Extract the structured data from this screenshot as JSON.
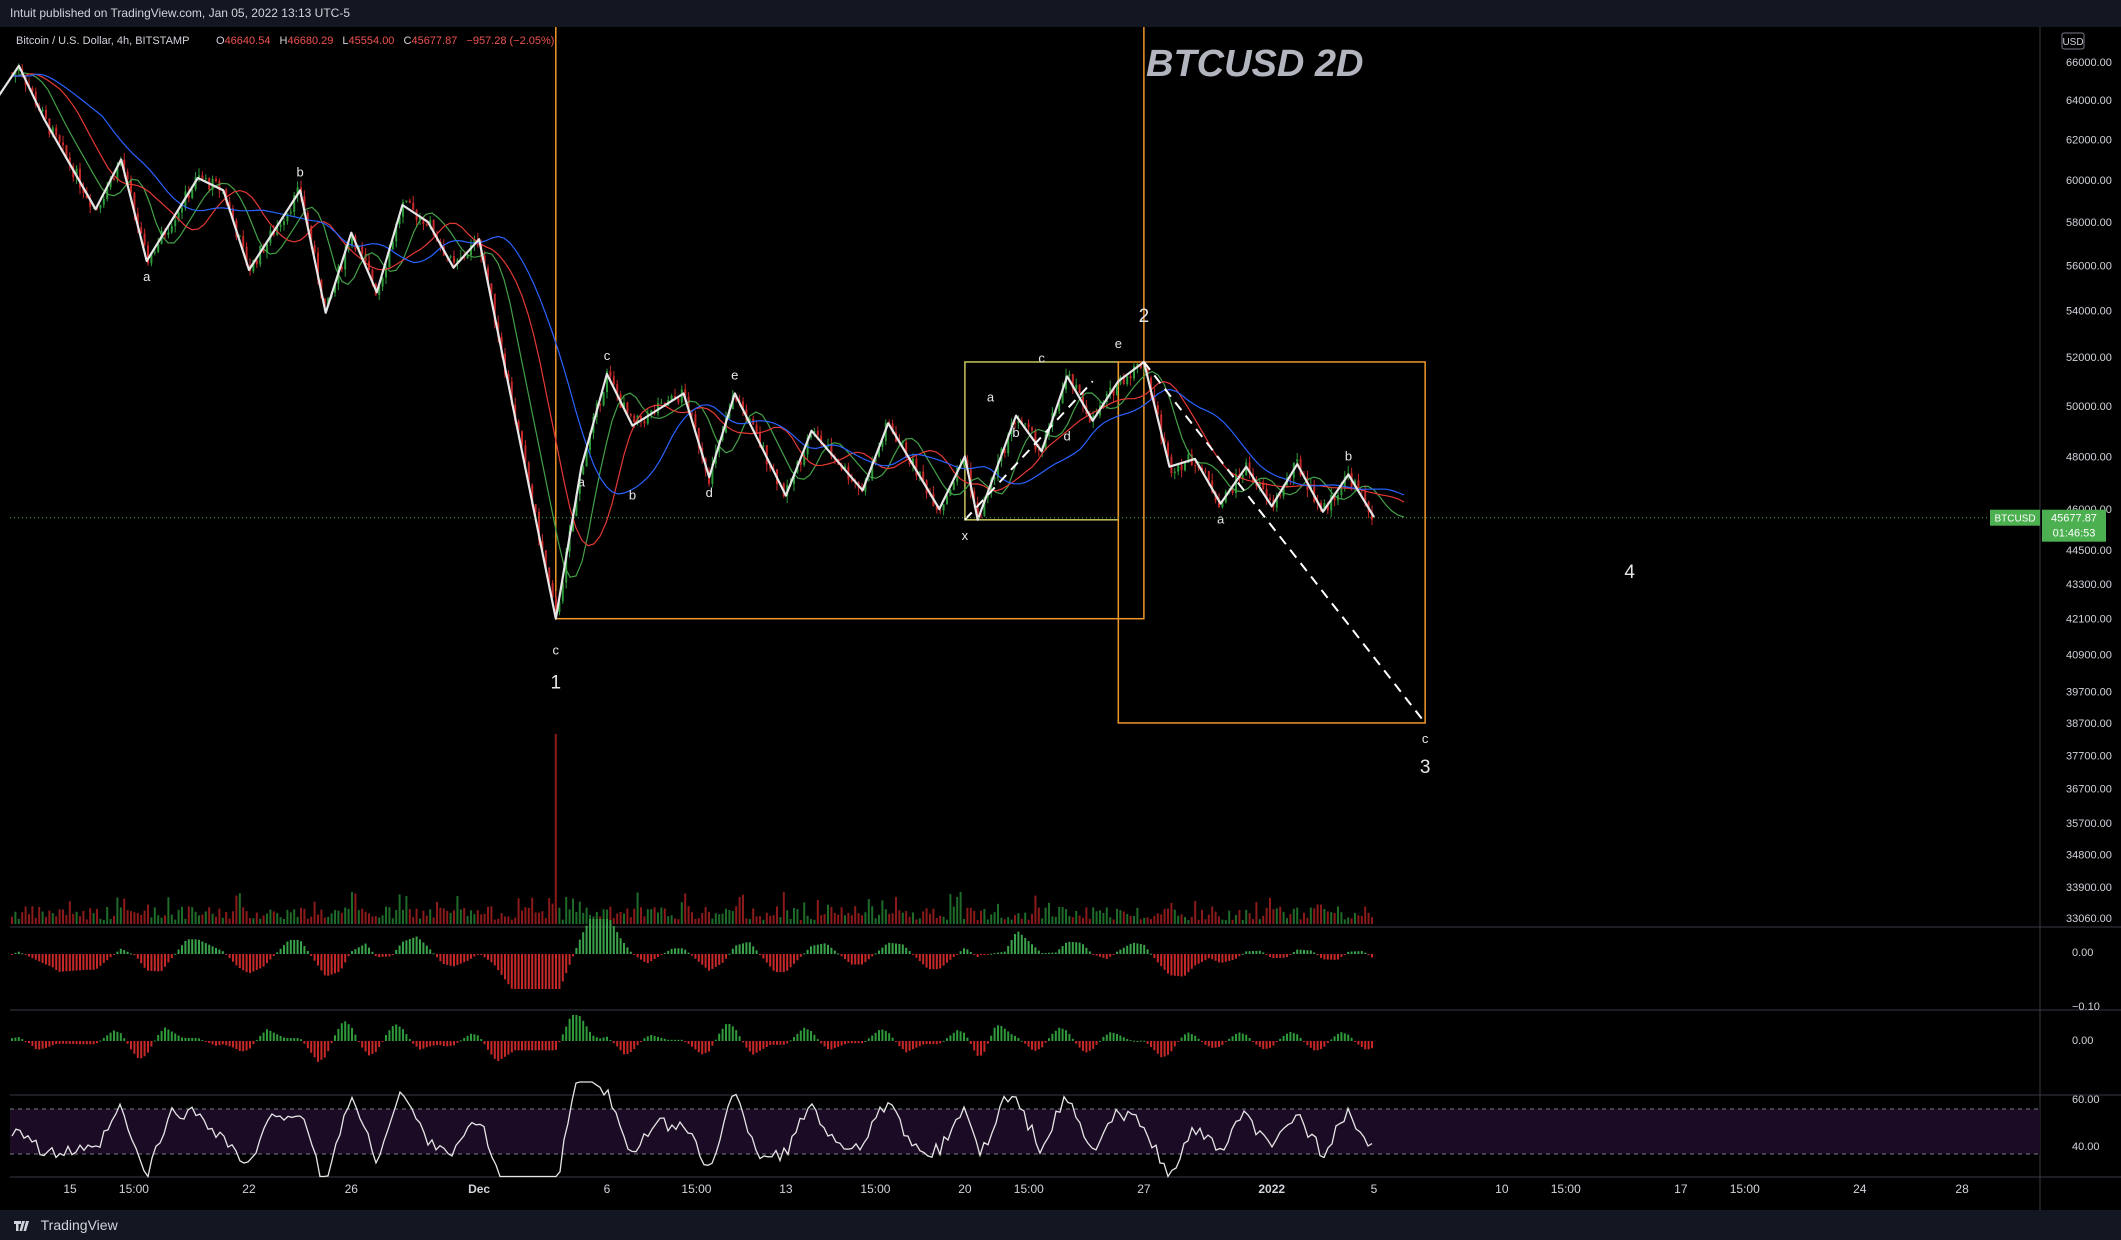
{
  "header": {
    "published_text": "Intuit published on TradingView.com, Jan 05, 2022 13:13 UTC-5"
  },
  "symbol_line": {
    "name": "Bitcoin / U.S. Dollar, 4h, BITSTAMP",
    "open_label": "O",
    "open": "46640.54",
    "high_label": "H",
    "high": "46680.29",
    "low_label": "L",
    "low": "45554.00",
    "close_label": "C",
    "close": "45677.87",
    "change": "−957.28 (−2.05%)"
  },
  "watermark_title": "BTCUSD 2D",
  "currency_badge": "USD",
  "price_tag": {
    "symbol": "BTCUSD",
    "price": "45677.87",
    "countdown": "01:46:53",
    "color": "#4caf50"
  },
  "footer": {
    "brand": "TradingView"
  },
  "colors": {
    "up": "#26a69a",
    "up_green": "#4caf50",
    "down": "#ef5350",
    "box_orange": "#f0962b",
    "box_yellow": "#c8c55a",
    "ma_blue": "#2962ff",
    "ma_red": "#e53935",
    "ma_green": "#43a047",
    "wave_line": "#e6e6e6",
    "rsi_band": "#1b0b24"
  },
  "chart_data": {
    "type": "candlestick",
    "title": "BTCUSD 2D",
    "symbol": "BTCUSD",
    "timeframe": "4h",
    "exchange": "BITSTAMP",
    "y_axis": {
      "tick_labels": [
        "66000.00",
        "64000.00",
        "62000.00",
        "60000.00",
        "58000.00",
        "56000.00",
        "54000.00",
        "52000.00",
        "50000.00",
        "48000.00",
        "46000.00",
        "44500.00",
        "43300.00",
        "42100.00",
        "40900.00",
        "39700.00",
        "38700.00",
        "37700.00",
        "36700.00",
        "35700.00",
        "34800.00",
        "33900.00",
        "33060.00"
      ],
      "scale": "log",
      "ylim": [
        33060,
        67000
      ],
      "grid": false
    },
    "x_axis": {
      "tick_labels": [
        "15",
        "15:00",
        "22",
        "26",
        "Dec",
        "6",
        "15:00",
        "13",
        "15:00",
        "20",
        "15:00",
        "27",
        "2022",
        "5",
        "10",
        "15:00",
        "17",
        "15:00",
        "24",
        "28"
      ],
      "bold_labels": [
        "Dec",
        "2022"
      ]
    },
    "wave_path": [
      {
        "d": "Nov 12",
        "p": 63800
      },
      {
        "d": "Nov 13",
        "p": 65800
      },
      {
        "d": "Nov 14",
        "p": 63000
      },
      {
        "d": "Nov 16",
        "p": 58600
      },
      {
        "d": "Nov 17",
        "p": 61000
      },
      {
        "d": "Nov 18",
        "p": 56200
      },
      {
        "d": "Nov 20",
        "p": 60100
      },
      {
        "d": "Nov 21",
        "p": 59500
      },
      {
        "d": "Nov 22",
        "p": 55800
      },
      {
        "d": "Nov 24",
        "p": 59500
      },
      {
        "d": "Nov 25",
        "p": 53900
      },
      {
        "d": "Nov 26",
        "p": 57500
      },
      {
        "d": "Nov 27",
        "p": 54800
      },
      {
        "d": "Nov 28",
        "p": 58800
      },
      {
        "d": "Nov 29",
        "p": 58000
      },
      {
        "d": "Nov 30",
        "p": 55900
      },
      {
        "d": "Dec 01",
        "p": 57200
      },
      {
        "d": "Dec 04",
        "p": 42100
      },
      {
        "d": "Dec 05",
        "p": 47600
      },
      {
        "d": "Dec 06",
        "p": 51300
      },
      {
        "d": "Dec 07",
        "p": 49200
      },
      {
        "d": "Dec 09",
        "p": 50500
      },
      {
        "d": "Dec 10",
        "p": 47200
      },
      {
        "d": "Dec 11",
        "p": 50500
      },
      {
        "d": "Dec 13",
        "p": 46500
      },
      {
        "d": "Dec 14",
        "p": 49000
      },
      {
        "d": "Dec 16",
        "p": 46700
      },
      {
        "d": "Dec 17",
        "p": 49300
      },
      {
        "d": "Dec 19",
        "p": 46000
      },
      {
        "d": "Dec 20",
        "p": 48000
      },
      {
        "d": "Dec 20b",
        "p": 45600
      },
      {
        "d": "Dec 22",
        "p": 49600
      },
      {
        "d": "Dec 23",
        "p": 48200
      },
      {
        "d": "Dec 24",
        "p": 51200
      },
      {
        "d": "Dec 25",
        "p": 49400
      },
      {
        "d": "Dec 26",
        "p": 51000
      },
      {
        "d": "Dec 27",
        "p": 51800
      },
      {
        "d": "Dec 28",
        "p": 47600
      },
      {
        "d": "Dec 29",
        "p": 47900
      },
      {
        "d": "Dec 30",
        "p": 46200
      },
      {
        "d": "Dec 31",
        "p": 47600
      },
      {
        "d": "Jan 01",
        "p": 46100
      },
      {
        "d": "Jan 02",
        "p": 47700
      },
      {
        "d": "Jan 03",
        "p": 45900
      },
      {
        "d": "Jan 04",
        "p": 47300
      },
      {
        "d": "Jan 05",
        "p": 45700
      }
    ],
    "wave_labels": [
      {
        "text": "b",
        "d": "Nov 24",
        "p": 59500,
        "size": "small"
      },
      {
        "text": "a",
        "d": "Nov 18",
        "p": 56200,
        "size": "small"
      },
      {
        "text": "a",
        "d": "Dec 05",
        "p": 47600,
        "size": "small"
      },
      {
        "text": "b",
        "d": "Dec 07",
        "p": 46800,
        "size": "small"
      },
      {
        "text": "c",
        "d": "Dec 06",
        "p": 51300,
        "size": "small"
      },
      {
        "text": "d",
        "d": "Dec 10",
        "p": 47200,
        "size": "small"
      },
      {
        "text": "e",
        "d": "Dec 11",
        "p": 50500,
        "size": "small"
      },
      {
        "text": "c",
        "d": "Dec 04",
        "p": 42100,
        "size": "small"
      },
      {
        "text": "1",
        "d": "Dec 04",
        "p": 42100,
        "size": "big"
      },
      {
        "text": "a",
        "d": "Dec 21",
        "p": 49600,
        "size": "small"
      },
      {
        "text": "b",
        "d": "Dec 22",
        "p": 48200,
        "size": "small"
      },
      {
        "text": "c",
        "d": "Dec 23",
        "p": 51200,
        "size": "small"
      },
      {
        "text": "d",
        "d": "Dec 24",
        "p": 49400,
        "size": "small"
      },
      {
        "text": "e",
        "d": "Dec 26",
        "p": 51800,
        "size": "small"
      },
      {
        "text": "x",
        "d": "Dec 20",
        "p": 45600,
        "size": "small"
      },
      {
        "text": "2",
        "d": "Dec 27",
        "p": 51800,
        "size": "big"
      },
      {
        "text": "a",
        "d": "Dec 30",
        "p": 46200,
        "size": "small"
      },
      {
        "text": "b",
        "d": "Jan 04",
        "p": 47300,
        "size": "small"
      },
      {
        "text": "c",
        "d": "Jan 07",
        "p": 38700,
        "size": "small"
      },
      {
        "text": "3",
        "d": "Jan 07",
        "p": 38700,
        "size": "big"
      },
      {
        "text": "4",
        "d": "Jan 15",
        "p": 44500,
        "size": "big"
      }
    ],
    "rectangles": [
      {
        "color": "orange",
        "from": "Dec 04",
        "to": "Dec 27",
        "top": 67000,
        "bottom": 42100
      },
      {
        "color": "yellow",
        "from": "Dec 20",
        "to": "Dec 26",
        "top": 51800,
        "bottom": 45600
      },
      {
        "color": "orange",
        "from": "Dec 26",
        "to": "Jan 07",
        "top": 51800,
        "bottom": 38700
      }
    ],
    "dashed_projections": [
      {
        "from": {
          "d": "Dec 20",
          "p": 45600
        },
        "to": {
          "d": "Dec 25",
          "p": 51000
        }
      },
      {
        "from": {
          "d": "Dec 27",
          "p": 51800
        },
        "to": {
          "d": "Jan 07",
          "p": 38700
        }
      }
    ],
    "last_price": 45677.87,
    "panes": [
      {
        "name": "volume",
        "type": "histogram"
      },
      {
        "name": "oscillator-1",
        "type": "histogram",
        "tick_labels": [
          "0.00",
          "−0.10"
        ]
      },
      {
        "name": "oscillator-2",
        "type": "histogram",
        "tick_labels": [
          "0.00"
        ]
      },
      {
        "name": "rsi",
        "type": "line",
        "tick_labels": [
          "60.00",
          "40.00"
        ],
        "band": [
          40,
          60
        ]
      }
    ]
  }
}
